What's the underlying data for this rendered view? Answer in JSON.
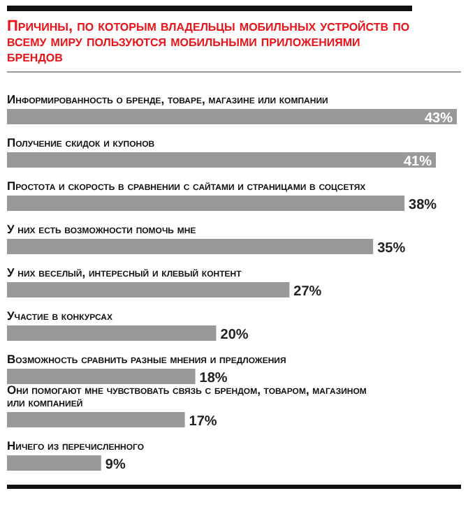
{
  "chart_data": {
    "type": "bar",
    "orientation": "horizontal",
    "title": "Причины, по которым владельцы мобильных устройств по всему миру пользуются мобильными приложениями брендов",
    "categories": [
      "Информированность о бренде, товаре, магазине или компании",
      "Получение скидок и купонов",
      "Простота и скорость в сравнении с сайтами и страницами в соцсетях",
      "У них есть возможности помочь мне",
      "У них веселый, интересный и клевый контент",
      "Участие в конкурсах",
      "Возможность сравнить разные мнения и предложения",
      "Они помогают мне чувствовать связь с брендом, товаром, магазином или компанией",
      "Ничего из перечисленного"
    ],
    "values": [
      43,
      41,
      38,
      35,
      27,
      20,
      18,
      17,
      9
    ],
    "value_labels": [
      "43%",
      "41%",
      "38%",
      "35%",
      "27%",
      "20%",
      "18%",
      "17%",
      "9%"
    ],
    "color": "#999999"
  }
}
